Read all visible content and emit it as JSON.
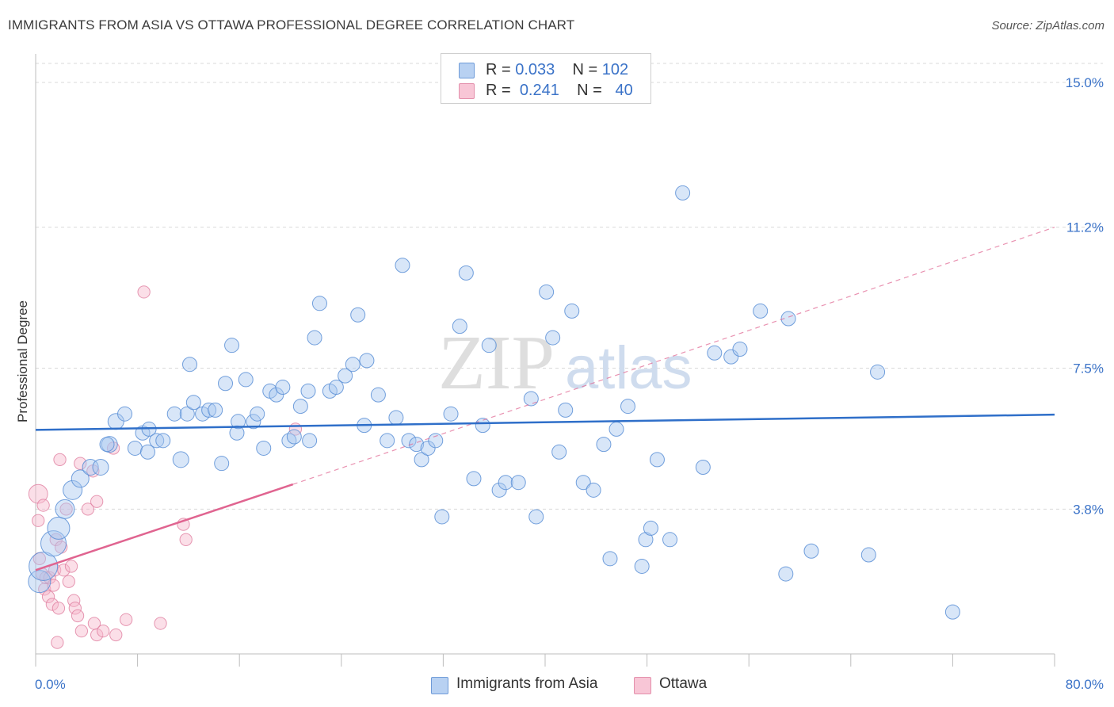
{
  "title": "IMMIGRANTS FROM ASIA VS OTTAWA PROFESSIONAL DEGREE CORRELATION CHART",
  "source": "Source: ZipAtlas.com",
  "watermark": {
    "zip": "ZIP",
    "atlas": "atlas"
  },
  "legend": {
    "rows": [
      {
        "r_label": "R =",
        "r_value": "0.033",
        "n_label": "N =",
        "n_value": "102"
      },
      {
        "r_label": "R =",
        "r_value": "0.241",
        "n_label": "N =",
        "n_value": "40"
      }
    ]
  },
  "bottom_legend": {
    "series1": "Immigrants from Asia",
    "series2": "Ottawa"
  },
  "colors": {
    "blue_fill": "#a9c7ef",
    "blue_stroke": "#5b8fd6",
    "blue_line": "#2f6fc9",
    "pink_fill": "#f6b8cb",
    "pink_stroke": "#e07fa0",
    "pink_line": "#e06490",
    "axis_label": "#3b73c8",
    "grid": "#d9d9d9"
  },
  "chart_data": {
    "type": "scatter",
    "title": "IMMIGRANTS FROM ASIA VS OTTAWA PROFESSIONAL DEGREE CORRELATION CHART",
    "xlabel": "",
    "ylabel": "Professional Degree",
    "xlim": [
      0,
      80
    ],
    "ylim": [
      0,
      15.5
    ],
    "x_tick_labels": [
      "0.0%",
      "80.0%"
    ],
    "y_ticks": [
      3.8,
      7.5,
      11.2,
      15.0
    ],
    "y_tick_labels": [
      "3.8%",
      "7.5%",
      "11.2%",
      "15.0%"
    ],
    "grid": true,
    "legend_position": "top-center",
    "series": [
      {
        "name": "Immigrants from Asia",
        "color": "#a9c7ef",
        "R": 0.033,
        "N": 102,
        "trend": {
          "x": [
            0,
            80
          ],
          "y": [
            5.88,
            6.28
          ]
        },
        "points": [
          [
            0.3,
            1.9,
            14
          ],
          [
            0.6,
            2.3,
            18
          ],
          [
            1.4,
            2.9,
            16
          ],
          [
            1.8,
            3.3,
            14
          ],
          [
            2.3,
            3.8,
            12
          ],
          [
            2.9,
            4.3,
            12
          ],
          [
            3.5,
            4.6,
            11
          ],
          [
            4.3,
            4.9,
            10
          ],
          [
            5.1,
            4.9,
            10
          ],
          [
            5.8,
            5.5,
            10
          ],
          [
            6.3,
            6.1,
            10
          ],
          [
            7.0,
            6.3,
            9
          ],
          [
            7.8,
            5.4,
            9
          ],
          [
            8.4,
            5.8,
            9
          ],
          [
            8.9,
            5.9,
            9
          ],
          [
            9.5,
            5.6,
            9
          ],
          [
            10.0,
            5.6,
            9
          ],
          [
            10.9,
            6.3,
            9
          ],
          [
            11.4,
            5.1,
            10
          ],
          [
            11.9,
            6.3,
            9
          ],
          [
            12.1,
            7.6,
            9
          ],
          [
            12.4,
            6.6,
            9
          ],
          [
            13.1,
            6.3,
            9
          ],
          [
            13.6,
            6.4,
            9
          ],
          [
            14.1,
            6.4,
            9
          ],
          [
            14.6,
            5.0,
            9
          ],
          [
            14.9,
            7.1,
            9
          ],
          [
            15.4,
            8.1,
            9
          ],
          [
            15.8,
            5.8,
            9
          ],
          [
            16.5,
            7.2,
            9
          ],
          [
            17.1,
            6.1,
            9
          ],
          [
            17.4,
            6.3,
            9
          ],
          [
            17.9,
            5.4,
            9
          ],
          [
            18.4,
            6.9,
            9
          ],
          [
            18.9,
            6.8,
            9
          ],
          [
            19.4,
            7.0,
            9
          ],
          [
            19.9,
            5.6,
            9
          ],
          [
            20.3,
            5.7,
            9
          ],
          [
            20.8,
            6.5,
            9
          ],
          [
            21.4,
            6.9,
            9
          ],
          [
            21.9,
            8.3,
            9
          ],
          [
            22.3,
            9.2,
            9
          ],
          [
            23.1,
            6.9,
            9
          ],
          [
            23.6,
            7.0,
            9
          ],
          [
            24.3,
            7.3,
            9
          ],
          [
            24.9,
            7.6,
            9
          ],
          [
            25.3,
            8.9,
            9
          ],
          [
            25.8,
            6.0,
            9
          ],
          [
            26.9,
            6.8,
            9
          ],
          [
            27.6,
            5.6,
            9
          ],
          [
            28.3,
            6.2,
            9
          ],
          [
            28.8,
            10.2,
            9
          ],
          [
            29.3,
            5.6,
            9
          ],
          [
            29.9,
            5.5,
            9
          ],
          [
            30.3,
            5.1,
            9
          ],
          [
            30.8,
            5.4,
            9
          ],
          [
            31.4,
            5.6,
            9
          ],
          [
            31.9,
            3.6,
            9
          ],
          [
            32.6,
            6.3,
            9
          ],
          [
            33.3,
            8.6,
            9
          ],
          [
            33.8,
            10.0,
            9
          ],
          [
            34.4,
            4.6,
            9
          ],
          [
            35.1,
            6.0,
            9
          ],
          [
            35.6,
            8.1,
            9
          ],
          [
            36.4,
            4.3,
            9
          ],
          [
            36.9,
            4.5,
            9
          ],
          [
            37.9,
            4.5,
            9
          ],
          [
            38.9,
            6.7,
            9
          ],
          [
            39.3,
            3.6,
            9
          ],
          [
            40.1,
            9.5,
            9
          ],
          [
            40.6,
            8.3,
            9
          ],
          [
            41.1,
            5.3,
            9
          ],
          [
            41.6,
            6.4,
            9
          ],
          [
            42.1,
            9.0,
            9
          ],
          [
            43.0,
            4.5,
            9
          ],
          [
            43.8,
            4.3,
            9
          ],
          [
            45.1,
            2.5,
            9
          ],
          [
            45.6,
            5.9,
            9
          ],
          [
            46.5,
            6.5,
            9
          ],
          [
            47.6,
            2.3,
            9
          ],
          [
            47.9,
            3.0,
            9
          ],
          [
            48.3,
            3.3,
            9
          ],
          [
            48.8,
            5.1,
            9
          ],
          [
            49.8,
            3.0,
            9
          ],
          [
            50.8,
            12.1,
            9
          ],
          [
            52.4,
            4.9,
            9
          ],
          [
            53.3,
            7.9,
            9
          ],
          [
            54.6,
            7.8,
            9
          ],
          [
            55.3,
            8.0,
            9
          ],
          [
            56.9,
            9.0,
            9
          ],
          [
            58.9,
            2.1,
            9
          ],
          [
            59.1,
            8.8,
            9
          ],
          [
            60.9,
            2.7,
            9
          ],
          [
            65.4,
            2.6,
            9
          ],
          [
            66.1,
            7.4,
            9
          ],
          [
            72.0,
            1.1,
            9
          ],
          [
            5.6,
            5.5,
            9
          ],
          [
            8.8,
            5.3,
            9
          ],
          [
            15.9,
            6.1,
            9
          ],
          [
            21.5,
            5.6,
            9
          ],
          [
            26.0,
            7.7,
            9
          ],
          [
            44.6,
            5.5,
            9
          ]
        ]
      },
      {
        "name": "Ottawa",
        "color": "#f6b8cb",
        "R": 0.241,
        "N": 40,
        "trend_solid": {
          "x": [
            0,
            20.2
          ],
          "y": [
            2.2,
            4.45
          ]
        },
        "trend_dashed": {
          "x": [
            20.2,
            80
          ],
          "y": [
            4.45,
            11.2
          ]
        },
        "points": [
          [
            0.2,
            4.2,
            14
          ],
          [
            0.2,
            3.5,
            9
          ],
          [
            0.3,
            2.5,
            9
          ],
          [
            0.5,
            2.1,
            9
          ],
          [
            0.6,
            3.9,
            9
          ],
          [
            0.7,
            1.7,
            9
          ],
          [
            0.8,
            2.0,
            9
          ],
          [
            1.0,
            1.5,
            9
          ],
          [
            1.1,
            2.0,
            9
          ],
          [
            1.3,
            1.3,
            9
          ],
          [
            1.4,
            1.8,
            9
          ],
          [
            1.5,
            2.2,
            9
          ],
          [
            1.6,
            3.0,
            9
          ],
          [
            1.8,
            1.2,
            9
          ],
          [
            1.9,
            5.1,
            9
          ],
          [
            2.0,
            2.8,
            9
          ],
          [
            2.2,
            2.2,
            9
          ],
          [
            2.4,
            3.8,
            9
          ],
          [
            2.6,
            1.9,
            9
          ],
          [
            2.8,
            2.3,
            9
          ],
          [
            3.0,
            1.4,
            9
          ],
          [
            3.1,
            1.2,
            9
          ],
          [
            3.3,
            1.0,
            9
          ],
          [
            3.5,
            5.0,
            9
          ],
          [
            3.6,
            0.6,
            9
          ],
          [
            4.1,
            3.8,
            9
          ],
          [
            4.5,
            4.8,
            9
          ],
          [
            4.6,
            0.8,
            9
          ],
          [
            4.8,
            4.0,
            9
          ],
          [
            4.8,
            0.5,
            9
          ],
          [
            5.3,
            0.6,
            9
          ],
          [
            6.1,
            5.4,
            9
          ],
          [
            6.3,
            0.5,
            9
          ],
          [
            7.1,
            0.9,
            9
          ],
          [
            8.5,
            9.5,
            9
          ],
          [
            9.8,
            0.8,
            9
          ],
          [
            11.6,
            3.4,
            9
          ],
          [
            11.8,
            3.0,
            9
          ],
          [
            20.4,
            5.9,
            9
          ],
          [
            1.7,
            0.3,
            9
          ]
        ]
      }
    ]
  }
}
